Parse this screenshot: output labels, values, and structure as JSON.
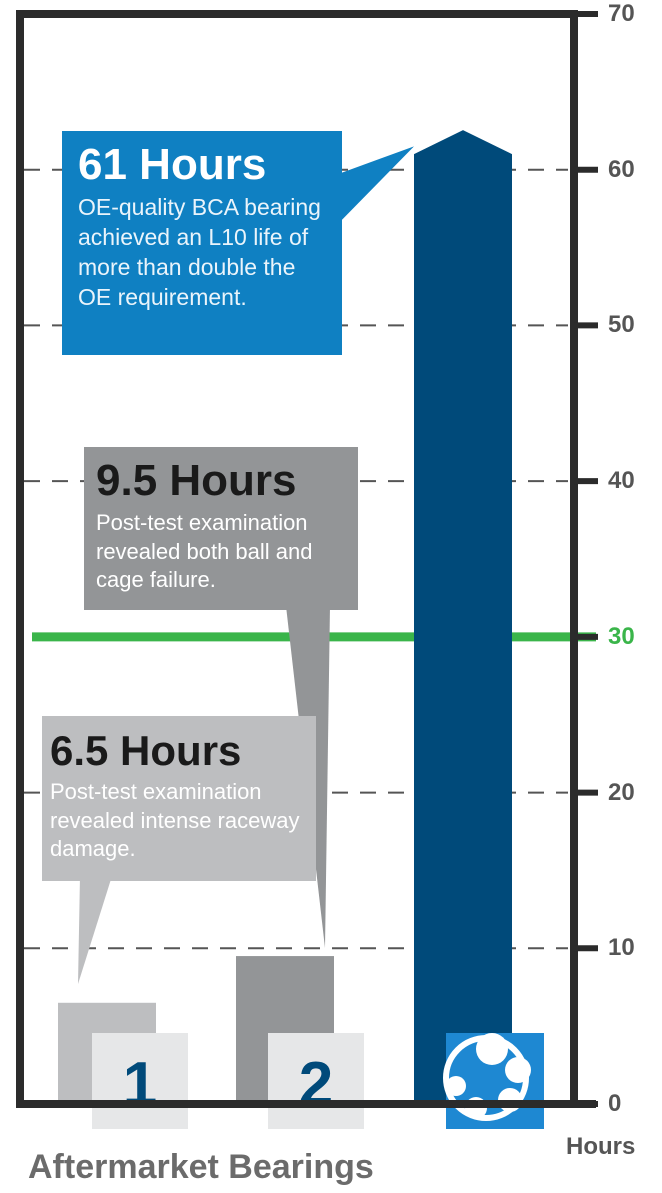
{
  "chart_data": {
    "type": "bar",
    "categories": [
      "1",
      "2",
      "BCA"
    ],
    "values": [
      6.5,
      9.5,
      61
    ],
    "bar_colors": [
      "#bdbec0",
      "#939597",
      "#004a7a"
    ],
    "ylim": [
      0,
      70
    ],
    "yticks": [
      0,
      10,
      20,
      30,
      40,
      50,
      60,
      70
    ],
    "ylabel": "Hours",
    "xlabel": "Aftermarket Bearings",
    "grid": "dashed",
    "reference_line": {
      "value": 30,
      "label": "30",
      "color": "#3ab54a"
    },
    "annotations": [
      {
        "head": "61 Hours",
        "text": "OE-quality BCA bearing achieved an L10 life of more than double the OE requirement.",
        "color": "#0f80c2"
      },
      {
        "head": "9.5 Hours",
        "text": "Post-test examination revealed both ball and cage failure.",
        "color": "#939597"
      },
      {
        "head": "6.5 Hours",
        "text": "Post-test examination revealed intense raceway damage.",
        "color": "#bdbec0"
      }
    ]
  },
  "tick_labels": [
    "0",
    "10",
    "20",
    "30",
    "40",
    "50",
    "60",
    "70"
  ],
  "bar_labels": [
    "1",
    "2"
  ],
  "logo_icon": "bearing-icon",
  "colors": {
    "axis": "#2b2b2b",
    "grid": "#555555",
    "label_box": "#e6e7e8",
    "label_text": "#004a7a"
  }
}
